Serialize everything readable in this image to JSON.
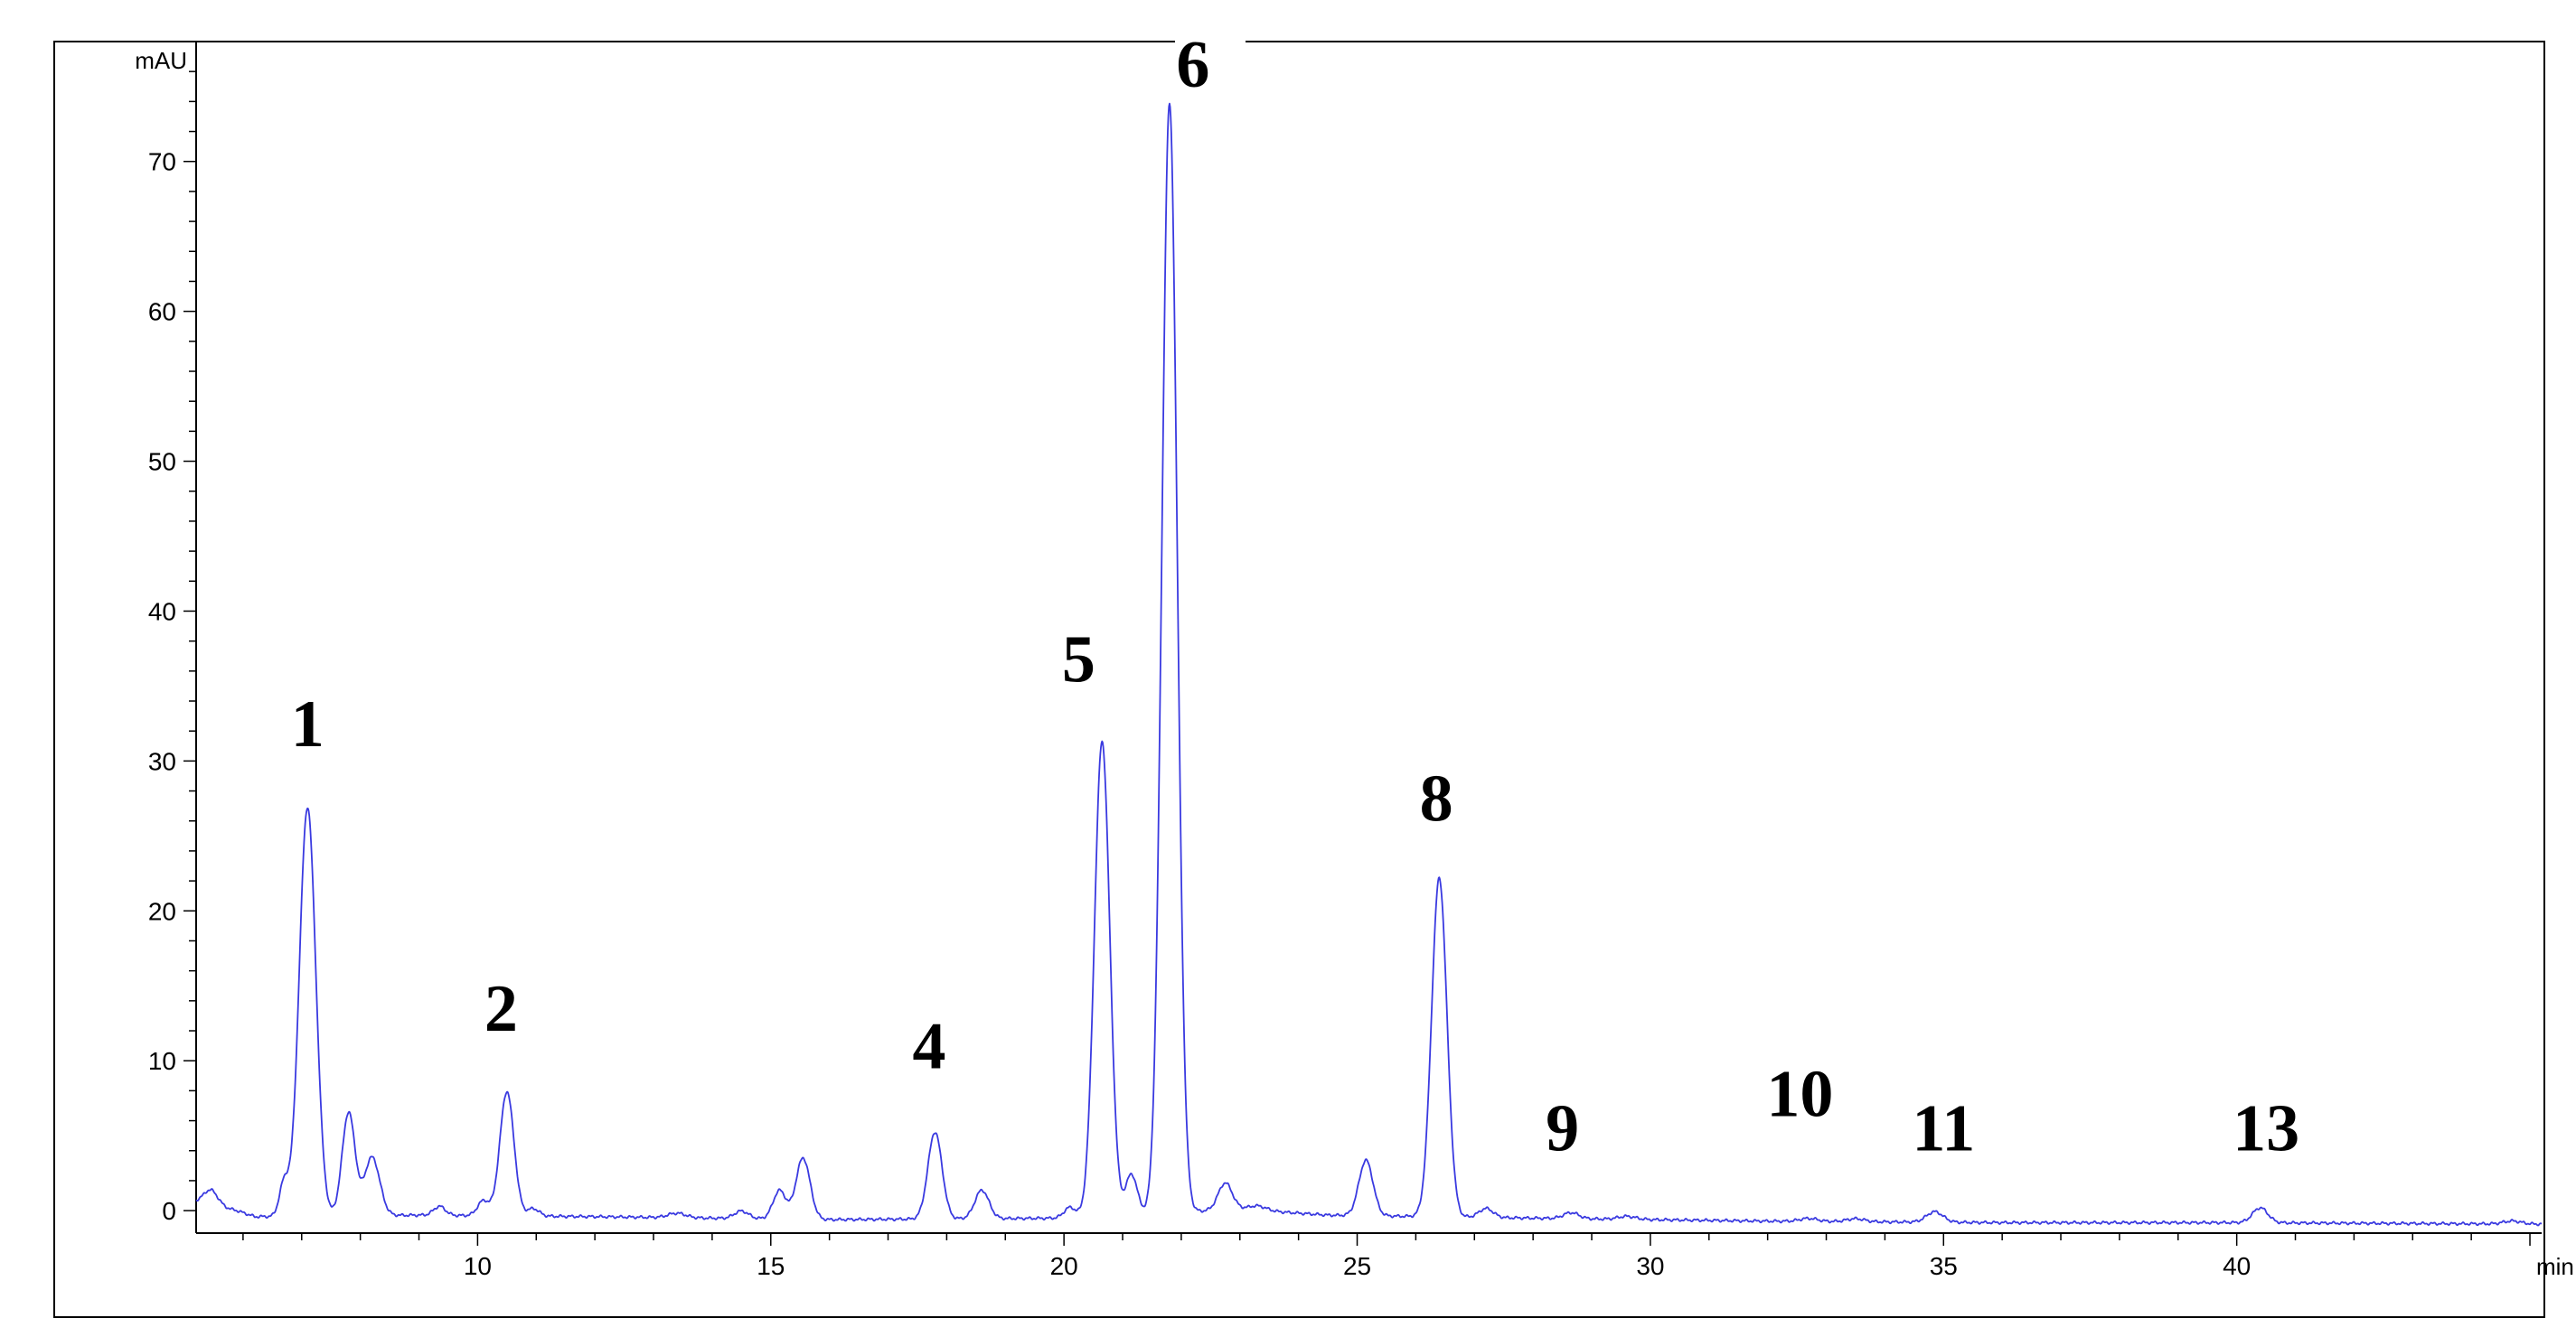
{
  "chart_data": {
    "type": "line",
    "x_unit_label": "min",
    "y_unit_label": "mAU",
    "xlim": [
      5.2,
      45.2
    ],
    "ylim": [
      -1.5,
      78
    ],
    "x_ticks": [
      10,
      15,
      20,
      25,
      30,
      35,
      40
    ],
    "y_ticks": [
      0,
      10,
      20,
      30,
      40,
      50,
      60,
      70
    ],
    "x_tick_labels": [
      "10",
      "15",
      "20",
      "25",
      "30",
      "35",
      "40"
    ],
    "y_tick_labels": [
      "0",
      "10",
      "20",
      "30",
      "40",
      "50",
      "60",
      "70"
    ],
    "grid": false,
    "line_color": "#3a3ae0",
    "peaks": [
      {
        "rt": 5.45,
        "height": 1.0,
        "width": 0.12
      },
      {
        "rt": 6.7,
        "height": 2.2,
        "width": 0.08
      },
      {
        "rt": 7.1,
        "height": 27.3,
        "width": 0.14
      },
      {
        "rt": 7.8,
        "height": 6.9,
        "width": 0.11
      },
      {
        "rt": 8.2,
        "height": 3.9,
        "width": 0.13
      },
      {
        "rt": 9.35,
        "height": 0.6,
        "width": 0.1
      },
      {
        "rt": 10.1,
        "height": 1.0,
        "width": 0.1
      },
      {
        "rt": 10.5,
        "height": 8.3,
        "width": 0.12
      },
      {
        "rt": 10.95,
        "height": 0.5,
        "width": 0.1
      },
      {
        "rt": 13.4,
        "height": 0.3,
        "width": 0.15
      },
      {
        "rt": 14.5,
        "height": 0.5,
        "width": 0.12
      },
      {
        "rt": 15.15,
        "height": 1.9,
        "width": 0.11
      },
      {
        "rt": 15.55,
        "height": 4.1,
        "width": 0.12
      },
      {
        "rt": 17.8,
        "height": 5.8,
        "width": 0.12
      },
      {
        "rt": 18.6,
        "height": 1.9,
        "width": 0.12
      },
      {
        "rt": 20.1,
        "height": 0.7,
        "width": 0.1
      },
      {
        "rt": 20.65,
        "height": 31.7,
        "width": 0.13
      },
      {
        "rt": 21.15,
        "height": 2.7,
        "width": 0.1
      },
      {
        "rt": 21.8,
        "height": 74.0,
        "width": 0.13
      },
      {
        "rt": 22.75,
        "height": 1.8,
        "width": 0.12
      },
      {
        "rt": 23.3,
        "height": 0.3,
        "width": 0.15
      },
      {
        "rt": 25.15,
        "height": 3.7,
        "width": 0.12
      },
      {
        "rt": 26.4,
        "height": 22.6,
        "width": 0.13
      },
      {
        "rt": 27.2,
        "height": 0.6,
        "width": 0.12
      },
      {
        "rt": 28.65,
        "height": 0.4,
        "width": 0.13
      },
      {
        "rt": 29.6,
        "height": 0.2,
        "width": 0.15
      },
      {
        "rt": 32.7,
        "height": 0.2,
        "width": 0.15
      },
      {
        "rt": 33.5,
        "height": 0.2,
        "width": 0.15
      },
      {
        "rt": 34.85,
        "height": 0.7,
        "width": 0.14
      },
      {
        "rt": 40.4,
        "height": 1.0,
        "width": 0.13
      },
      {
        "rt": 44.7,
        "height": 0.2,
        "width": 0.15
      }
    ],
    "baseline": [
      [
        5.2,
        0.6
      ],
      [
        5.9,
        0.0
      ],
      [
        6.2,
        -0.4
      ],
      [
        9.0,
        -0.3
      ],
      [
        12.0,
        -0.4
      ],
      [
        16.0,
        -0.6
      ],
      [
        20.0,
        -0.5
      ],
      [
        23.0,
        0.1
      ],
      [
        24.5,
        -0.3
      ],
      [
        28.0,
        -0.5
      ],
      [
        32.0,
        -0.7
      ],
      [
        36.0,
        -0.8
      ],
      [
        40.0,
        -0.8
      ],
      [
        45.2,
        -0.9
      ]
    ],
    "peak_labels": [
      {
        "label": "1",
        "x": 7.1,
        "y": 31.0
      },
      {
        "label": "2",
        "x": 10.4,
        "y": 12.0
      },
      {
        "label": "4",
        "x": 17.7,
        "y": 9.5
      },
      {
        "label": "5",
        "x": 20.25,
        "y": 35.3
      },
      {
        "label": "6",
        "x": 22.2,
        "y": 75.0
      },
      {
        "label": "8",
        "x": 26.35,
        "y": 26.0
      },
      {
        "label": "9",
        "x": 28.5,
        "y": 4.0
      },
      {
        "label": "10",
        "x": 32.55,
        "y": 6.3
      },
      {
        "label": "11",
        "x": 35.0,
        "y": 4.0
      },
      {
        "label": "13",
        "x": 40.5,
        "y": 4.0
      }
    ]
  }
}
